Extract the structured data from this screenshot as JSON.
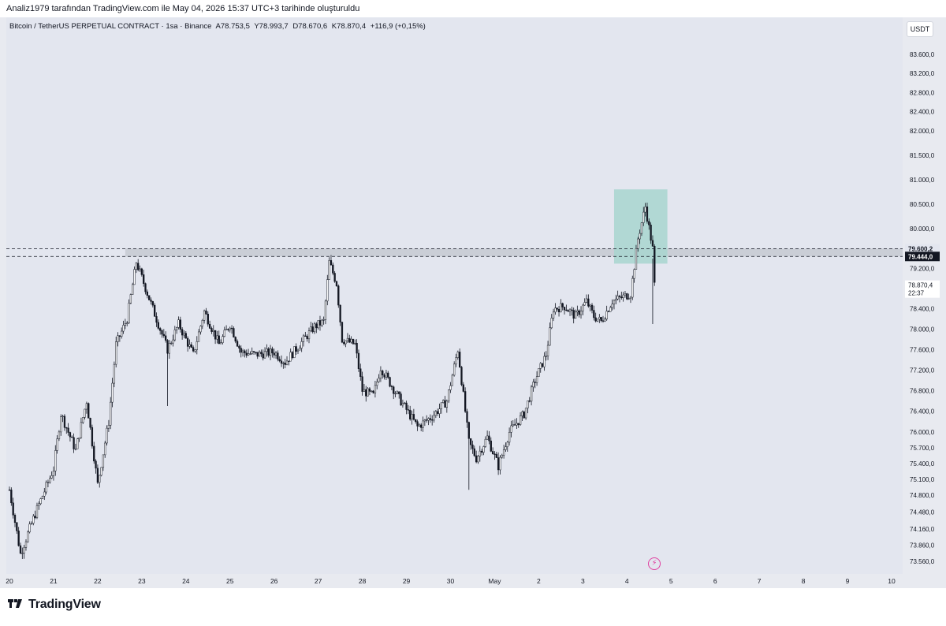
{
  "header": {
    "credit": "Analiz1979 tarafından TradingView.com ile May 04, 2026 15:37 UTC+3 tarihinde oluşturuldu"
  },
  "legend": {
    "symbol": "Bitcoin / TetherUS PERPETUAL CONTRACT · 1sa · Binance",
    "open": "A78.753,5",
    "high": "Y78.993,7",
    "low": "D78.670,6",
    "close": "K78.870,4",
    "change": "+116,9 (+0,15%)"
  },
  "currency_button": "USDT",
  "price_labels": {
    "level_high": "79.600,2",
    "level_low": "79.444,0",
    "last_price": "78.870,4",
    "countdown": "22:37"
  },
  "branding": {
    "logo_text": "TradingView"
  },
  "colors": {
    "bull": "#131722",
    "bear": "#131722",
    "zone": "#a8d5cf",
    "resistance_band": "#c6c9d1",
    "flash_icon": "#e040a0"
  },
  "icons": [
    "tradingview-logo-icon",
    "flash-icon"
  ],
  "chart_data": {
    "type": "candlestick",
    "title": "Bitcoin / TetherUS PERPETUAL CONTRACT · 1sa · Binance",
    "timeframe": "1 hour",
    "scale": "logarithmic",
    "y_ticks": [
      "83.600,0",
      "83.200,0",
      "82.800,0",
      "82.400,0",
      "82.000,0",
      "81.500,0",
      "81.000,0",
      "80.500,0",
      "80.000,0",
      "79.200,0",
      "78.400,0",
      "78.000,0",
      "77.600,0",
      "77.200,0",
      "76.800,0",
      "76.400,0",
      "76.000,0",
      "75.700,0",
      "75.400,0",
      "75.100,0",
      "74.800,0",
      "74.480,0",
      "74.160,0",
      "73.860,0",
      "73.560,0"
    ],
    "y_tick_values": [
      83600,
      83200,
      82800,
      82400,
      82000,
      81500,
      81000,
      80500,
      80000,
      79200,
      78400,
      78000,
      77600,
      77200,
      76800,
      76400,
      76000,
      75700,
      75400,
      75100,
      74800,
      74480,
      74160,
      73860,
      73560
    ],
    "x_ticks": [
      "20",
      "21",
      "22",
      "23",
      "24",
      "25",
      "26",
      "27",
      "28",
      "29",
      "30",
      "May",
      "2",
      "3",
      "4",
      "5",
      "6",
      "7",
      "8",
      "9",
      "10"
    ],
    "x_tick_days": [
      "Apr 20",
      "Apr 21",
      "Apr 22",
      "Apr 23",
      "Apr 24",
      "Apr 25",
      "Apr 26",
      "Apr 27",
      "Apr 28",
      "Apr 29",
      "Apr 30",
      "May 1",
      "May 2",
      "May 3",
      "May 4",
      "May 5",
      "May 6",
      "May 7",
      "May 8",
      "May 9",
      "May 10"
    ],
    "ylim": [
      73400,
      84000
    ],
    "anchors": [
      {
        "time": "Apr 20 00:00",
        "price": 74900
      },
      {
        "time": "Apr 20 06:00",
        "price": 73700
      },
      {
        "time": "Apr 20 14:00",
        "price": 74450
      },
      {
        "time": "Apr 21 00:00",
        "price": 75300
      },
      {
        "time": "Apr 21 04:00",
        "price": 76350
      },
      {
        "time": "Apr 21 12:00",
        "price": 75650
      },
      {
        "time": "Apr 21 18:00",
        "price": 76600
      },
      {
        "time": "Apr 22 00:00",
        "price": 75000
      },
      {
        "time": "Apr 22 06:00",
        "price": 76200
      },
      {
        "time": "Apr 22 10:00",
        "price": 77700
      },
      {
        "time": "Apr 22 16:00",
        "price": 78200
      },
      {
        "time": "Apr 22 21:00",
        "price": 79330
      },
      {
        "time": "Apr 23 06:00",
        "price": 78400
      },
      {
        "time": "Apr 23 14:00",
        "price": 77600
      },
      {
        "time": "Apr 23 20:00",
        "price": 78100
      },
      {
        "time": "Apr 24 04:00",
        "price": 77500
      },
      {
        "time": "Apr 24 10:00",
        "price": 78350
      },
      {
        "time": "Apr 24 18:00",
        "price": 77700
      },
      {
        "time": "Apr 25 00:00",
        "price": 78100
      },
      {
        "time": "Apr 25 06:00",
        "price": 77550
      },
      {
        "time": "Apr 25 14:00",
        "price": 77500
      },
      {
        "time": "Apr 26 00:00",
        "price": 77550
      },
      {
        "time": "Apr 26 06:00",
        "price": 77350
      },
      {
        "time": "Apr 26 14:00",
        "price": 77700
      },
      {
        "time": "Apr 26 22:00",
        "price": 78050
      },
      {
        "time": "Apr 27 03:00",
        "price": 78150
      },
      {
        "time": "Apr 27 06:00",
        "price": 79330
      },
      {
        "time": "Apr 27 10:00",
        "price": 78900
      },
      {
        "time": "Apr 27 13:00",
        "price": 77800
      },
      {
        "time": "Apr 27 20:00",
        "price": 77700
      },
      {
        "time": "Apr 28 00:00",
        "price": 76800
      },
      {
        "time": "Apr 28 06:00",
        "price": 76700
      },
      {
        "time": "Apr 28 10:00",
        "price": 77250
      },
      {
        "time": "Apr 28 20:00",
        "price": 76650
      },
      {
        "time": "Apr 29 06:00",
        "price": 76100
      },
      {
        "time": "Apr 29 14:00",
        "price": 76300
      },
      {
        "time": "Apr 29 22:00",
        "price": 76600
      },
      {
        "time": "Apr 30 04:00",
        "price": 77600
      },
      {
        "time": "Apr 30 10:00",
        "price": 75800
      },
      {
        "time": "Apr 30 14:00",
        "price": 75500
      },
      {
        "time": "Apr 30 20:00",
        "price": 75900
      },
      {
        "time": "May 1 02:00",
        "price": 75350
      },
      {
        "time": "May 1 08:00",
        "price": 76000
      },
      {
        "time": "May 1 16:00",
        "price": 76350
      },
      {
        "time": "May 1 22:00",
        "price": 77000
      },
      {
        "time": "May 2 04:00",
        "price": 77500
      },
      {
        "time": "May 2 08:00",
        "price": 78400
      },
      {
        "time": "May 2 14:00",
        "price": 78450
      },
      {
        "time": "May 2 20:00",
        "price": 78250
      },
      {
        "time": "May 3 02:00",
        "price": 78550
      },
      {
        "time": "May 3 06:00",
        "price": 78250
      },
      {
        "time": "May 3 10:00",
        "price": 78150
      },
      {
        "time": "May 3 16:00",
        "price": 78550
      },
      {
        "time": "May 4 02:00",
        "price": 78700
      },
      {
        "time": "May 4 06:00",
        "price": 79800
      },
      {
        "time": "May 4 10:00",
        "price": 80450
      },
      {
        "time": "May 4 14:00",
        "price": 79600
      },
      {
        "time": "May 4 15:00",
        "price": 78870
      }
    ],
    "annotations": {
      "resistance_band": {
        "from": 79444.0,
        "to": 79600.2,
        "start": "Apr 22 15:00"
      },
      "highlight_box": {
        "from_price": 79300,
        "to_price": 80800,
        "start": "May 3 17:00",
        "end": "May 4 22:00"
      }
    },
    "last_price": 78870.4
  }
}
